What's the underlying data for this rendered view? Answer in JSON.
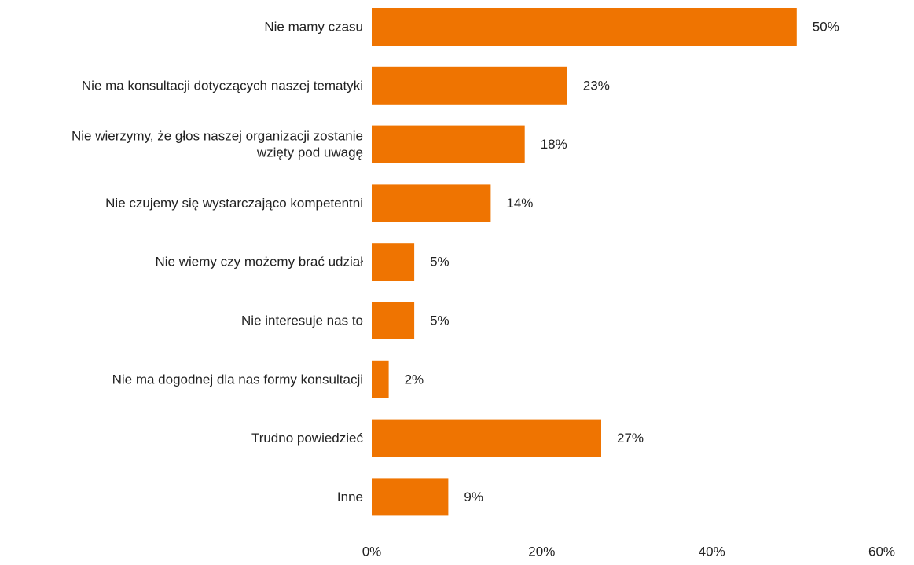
{
  "chart_data": {
    "type": "bar",
    "orientation": "horizontal",
    "categories": [
      "Nie mamy czasu",
      "Nie ma konsultacji dotyczących naszej tematyki",
      "Nie wierzymy, że głos naszej organizacji zostanie wzięty pod uwagę",
      "Nie czujemy się wystarczająco kompetentni",
      "Nie wiemy czy możemy brać udział",
      "Nie interesuje nas to",
      "Nie ma dogodnej dla nas formy konsultacji",
      "Trudno powiedzieć",
      "Inne"
    ],
    "category_lines": [
      [
        "Nie mamy czasu"
      ],
      [
        "Nie ma konsultacji dotyczących naszej tematyki"
      ],
      [
        "Nie wierzymy, że głos naszej organizacji zostanie",
        "wzięty pod uwagę"
      ],
      [
        "Nie czujemy się wystarczająco kompetentni"
      ],
      [
        "Nie wiemy czy możemy brać udział"
      ],
      [
        "Nie interesuje nas to"
      ],
      [
        "Nie ma dogodnej dla nas formy konsultacji"
      ],
      [
        "Trudno powiedzieć"
      ],
      [
        "Inne"
      ]
    ],
    "values": [
      50,
      23,
      18,
      14,
      5,
      5,
      2,
      27,
      9
    ],
    "data_labels": [
      "50%",
      "23%",
      "18%",
      "14%",
      "5%",
      "5%",
      "2%",
      "27%",
      "9%"
    ],
    "x_ticks": [
      0,
      20,
      40,
      60
    ],
    "x_tick_labels": [
      "0%",
      "20%",
      "40%",
      "60%"
    ],
    "xlim": [
      0,
      60
    ],
    "grid": false,
    "legend": "none",
    "bar_color": "#ef7401",
    "text_color": "#222222"
  }
}
